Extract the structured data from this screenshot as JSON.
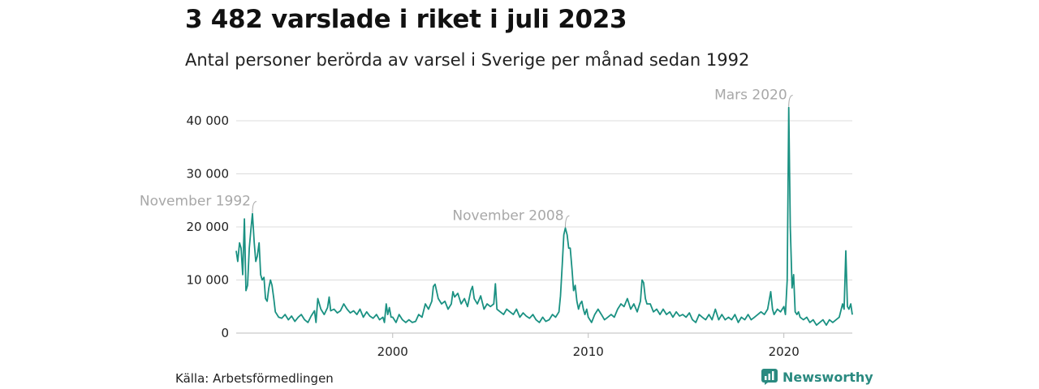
{
  "title": "3 482 varslade i riket i juli 2023",
  "subtitle": "Antal personer berörda av varsel i Sverige per månad sedan 1992",
  "source": "Källa: Arbetsförmedlingen",
  "brand": "Newsworthy",
  "colors": {
    "line": "#1a9182",
    "grid": "#dcdcdc",
    "annotation": "#a8a8a8",
    "brand": "#2a8a80"
  },
  "chart_data": {
    "type": "line",
    "title": "3 482 varslade i riket i juli 2023",
    "subtitle": "Antal personer berörda av varsel i Sverige per månad sedan 1992",
    "xlabel": "",
    "ylabel": "",
    "xlim": [
      1992.0,
      2023.5
    ],
    "ylim": [
      0,
      40000
    ],
    "grid": true,
    "x_ticks": [
      {
        "value": 2000,
        "label": "2000"
      },
      {
        "value": 2010,
        "label": "2010"
      },
      {
        "value": 2020,
        "label": "2020"
      }
    ],
    "y_ticks": [
      {
        "value": 0,
        "label": "0"
      },
      {
        "value": 10000,
        "label": "10 000"
      },
      {
        "value": 20000,
        "label": "20 000"
      },
      {
        "value": 30000,
        "label": "30 000"
      },
      {
        "value": 40000,
        "label": "40 000"
      }
    ],
    "series": [
      {
        "points": [
          [
            1992.0,
            15500
          ],
          [
            1992.08,
            13500
          ],
          [
            1992.17,
            17000
          ],
          [
            1992.25,
            16000
          ],
          [
            1992.33,
            11000
          ],
          [
            1992.42,
            21500
          ],
          [
            1992.5,
            8000
          ],
          [
            1992.58,
            9000
          ],
          [
            1992.67,
            16000
          ],
          [
            1992.75,
            19500
          ],
          [
            1992.83,
            22500
          ],
          [
            1992.92,
            17000
          ],
          [
            1993.0,
            13500
          ],
          [
            1993.08,
            14500
          ],
          [
            1993.17,
            17000
          ],
          [
            1993.25,
            11000
          ],
          [
            1993.33,
            10000
          ],
          [
            1993.42,
            10500
          ],
          [
            1993.5,
            6500
          ],
          [
            1993.58,
            6000
          ],
          [
            1993.67,
            8500
          ],
          [
            1993.75,
            10000
          ],
          [
            1993.83,
            9000
          ],
          [
            1993.92,
            6500
          ],
          [
            1994.0,
            4000
          ],
          [
            1994.17,
            3000
          ],
          [
            1994.33,
            2800
          ],
          [
            1994.5,
            3500
          ],
          [
            1994.67,
            2500
          ],
          [
            1994.83,
            3200
          ],
          [
            1995.0,
            2200
          ],
          [
            1995.17,
            3000
          ],
          [
            1995.33,
            3500
          ],
          [
            1995.5,
            2500
          ],
          [
            1995.67,
            2000
          ],
          [
            1995.83,
            3200
          ],
          [
            1996.0,
            4200
          ],
          [
            1996.08,
            2000
          ],
          [
            1996.17,
            6500
          ],
          [
            1996.33,
            4500
          ],
          [
            1996.5,
            3500
          ],
          [
            1996.67,
            4800
          ],
          [
            1996.75,
            6800
          ],
          [
            1996.83,
            4200
          ],
          [
            1997.0,
            4500
          ],
          [
            1997.17,
            3800
          ],
          [
            1997.33,
            4200
          ],
          [
            1997.5,
            5500
          ],
          [
            1997.67,
            4500
          ],
          [
            1997.83,
            3800
          ],
          [
            1998.0,
            4200
          ],
          [
            1998.17,
            3500
          ],
          [
            1998.33,
            4500
          ],
          [
            1998.5,
            3000
          ],
          [
            1998.67,
            4000
          ],
          [
            1998.83,
            3200
          ],
          [
            1999.0,
            2800
          ],
          [
            1999.17,
            3500
          ],
          [
            1999.33,
            2500
          ],
          [
            1999.5,
            3000
          ],
          [
            1999.58,
            2000
          ],
          [
            1999.67,
            5500
          ],
          [
            1999.75,
            3500
          ],
          [
            1999.83,
            4800
          ],
          [
            1999.92,
            3000
          ],
          [
            2000.0,
            3000
          ],
          [
            2000.17,
            2000
          ],
          [
            2000.33,
            3500
          ],
          [
            2000.5,
            2500
          ],
          [
            2000.67,
            2000
          ],
          [
            2000.83,
            2500
          ],
          [
            2001.0,
            2000
          ],
          [
            2001.17,
            2200
          ],
          [
            2001.33,
            3500
          ],
          [
            2001.5,
            3000
          ],
          [
            2001.67,
            5500
          ],
          [
            2001.83,
            4500
          ],
          [
            2002.0,
            6000
          ],
          [
            2002.08,
            8800
          ],
          [
            2002.17,
            9200
          ],
          [
            2002.33,
            6500
          ],
          [
            2002.5,
            5500
          ],
          [
            2002.67,
            6000
          ],
          [
            2002.83,
            4500
          ],
          [
            2003.0,
            5500
          ],
          [
            2003.08,
            7800
          ],
          [
            2003.17,
            6800
          ],
          [
            2003.33,
            7500
          ],
          [
            2003.5,
            5500
          ],
          [
            2003.67,
            6500
          ],
          [
            2003.83,
            5000
          ],
          [
            2004.0,
            8000
          ],
          [
            2004.08,
            8800
          ],
          [
            2004.17,
            6500
          ],
          [
            2004.33,
            5500
          ],
          [
            2004.5,
            7000
          ],
          [
            2004.67,
            4500
          ],
          [
            2004.83,
            5500
          ],
          [
            2005.0,
            5000
          ],
          [
            2005.17,
            5500
          ],
          [
            2005.25,
            9300
          ],
          [
            2005.33,
            4500
          ],
          [
            2005.5,
            4000
          ],
          [
            2005.67,
            3500
          ],
          [
            2005.83,
            4500
          ],
          [
            2006.0,
            4000
          ],
          [
            2006.17,
            3500
          ],
          [
            2006.33,
            4500
          ],
          [
            2006.5,
            3000
          ],
          [
            2006.67,
            3800
          ],
          [
            2006.83,
            3200
          ],
          [
            2007.0,
            2800
          ],
          [
            2007.17,
            3500
          ],
          [
            2007.33,
            2500
          ],
          [
            2007.5,
            2000
          ],
          [
            2007.67,
            3000
          ],
          [
            2007.83,
            2200
          ],
          [
            2008.0,
            2500
          ],
          [
            2008.17,
            3500
          ],
          [
            2008.33,
            3000
          ],
          [
            2008.5,
            4000
          ],
          [
            2008.58,
            7000
          ],
          [
            2008.67,
            13000
          ],
          [
            2008.75,
            18500
          ],
          [
            2008.83,
            19800
          ],
          [
            2008.92,
            18500
          ],
          [
            2009.0,
            16000
          ],
          [
            2009.08,
            16000
          ],
          [
            2009.17,
            12000
          ],
          [
            2009.25,
            8000
          ],
          [
            2009.33,
            9000
          ],
          [
            2009.42,
            6000
          ],
          [
            2009.5,
            4500
          ],
          [
            2009.58,
            5500
          ],
          [
            2009.67,
            6000
          ],
          [
            2009.75,
            4500
          ],
          [
            2009.83,
            3500
          ],
          [
            2009.92,
            4500
          ],
          [
            2010.0,
            3000
          ],
          [
            2010.17,
            2000
          ],
          [
            2010.33,
            3500
          ],
          [
            2010.5,
            4500
          ],
          [
            2010.67,
            3500
          ],
          [
            2010.83,
            2500
          ],
          [
            2011.0,
            3000
          ],
          [
            2011.17,
            3500
          ],
          [
            2011.33,
            3000
          ],
          [
            2011.5,
            4500
          ],
          [
            2011.67,
            5500
          ],
          [
            2011.83,
            5000
          ],
          [
            2012.0,
            6500
          ],
          [
            2012.17,
            4500
          ],
          [
            2012.33,
            5500
          ],
          [
            2012.5,
            4000
          ],
          [
            2012.67,
            6000
          ],
          [
            2012.75,
            10000
          ],
          [
            2012.83,
            9500
          ],
          [
            2012.92,
            6500
          ],
          [
            2013.0,
            5500
          ],
          [
            2013.17,
            5500
          ],
          [
            2013.33,
            4000
          ],
          [
            2013.5,
            4500
          ],
          [
            2013.67,
            3500
          ],
          [
            2013.83,
            4500
          ],
          [
            2014.0,
            3500
          ],
          [
            2014.17,
            4000
          ],
          [
            2014.33,
            3000
          ],
          [
            2014.5,
            4000
          ],
          [
            2014.67,
            3200
          ],
          [
            2014.83,
            3500
          ],
          [
            2015.0,
            3000
          ],
          [
            2015.17,
            3800
          ],
          [
            2015.33,
            2500
          ],
          [
            2015.5,
            2000
          ],
          [
            2015.67,
            3500
          ],
          [
            2015.83,
            3000
          ],
          [
            2016.0,
            2500
          ],
          [
            2016.17,
            3500
          ],
          [
            2016.33,
            2500
          ],
          [
            2016.5,
            4500
          ],
          [
            2016.67,
            2500
          ],
          [
            2016.83,
            3500
          ],
          [
            2017.0,
            2500
          ],
          [
            2017.17,
            3000
          ],
          [
            2017.33,
            2500
          ],
          [
            2017.5,
            3500
          ],
          [
            2017.67,
            2000
          ],
          [
            2017.83,
            3000
          ],
          [
            2018.0,
            2500
          ],
          [
            2018.17,
            3500
          ],
          [
            2018.33,
            2500
          ],
          [
            2018.5,
            3000
          ],
          [
            2018.67,
            3500
          ],
          [
            2018.83,
            4000
          ],
          [
            2019.0,
            3500
          ],
          [
            2019.17,
            4500
          ],
          [
            2019.33,
            7800
          ],
          [
            2019.42,
            4500
          ],
          [
            2019.5,
            3500
          ],
          [
            2019.67,
            4500
          ],
          [
            2019.83,
            4000
          ],
          [
            2020.0,
            5000
          ],
          [
            2020.08,
            3500
          ],
          [
            2020.17,
            10000
          ],
          [
            2020.25,
            42500
          ],
          [
            2020.33,
            20000
          ],
          [
            2020.42,
            8500
          ],
          [
            2020.5,
            11000
          ],
          [
            2020.58,
            4000
          ],
          [
            2020.67,
            3500
          ],
          [
            2020.75,
            4000
          ],
          [
            2020.83,
            3000
          ],
          [
            2021.0,
            2500
          ],
          [
            2021.17,
            3000
          ],
          [
            2021.33,
            2000
          ],
          [
            2021.5,
            2500
          ],
          [
            2021.67,
            1500
          ],
          [
            2021.83,
            2000
          ],
          [
            2022.0,
            2500
          ],
          [
            2022.17,
            1500
          ],
          [
            2022.33,
            2500
          ],
          [
            2022.5,
            2000
          ],
          [
            2022.67,
            2500
          ],
          [
            2022.83,
            3000
          ],
          [
            2023.0,
            5500
          ],
          [
            2023.08,
            4500
          ],
          [
            2023.17,
            15500
          ],
          [
            2023.25,
            5000
          ],
          [
            2023.33,
            4500
          ],
          [
            2023.42,
            5500
          ],
          [
            2023.5,
            3482
          ]
        ]
      }
    ],
    "annotations": [
      {
        "label": "November 1992",
        "x": 1992.83,
        "y": 22500
      },
      {
        "label": "November 2008",
        "x": 2008.83,
        "y": 19800
      },
      {
        "label": "Mars 2020",
        "x": 2020.25,
        "y": 42500
      }
    ]
  }
}
